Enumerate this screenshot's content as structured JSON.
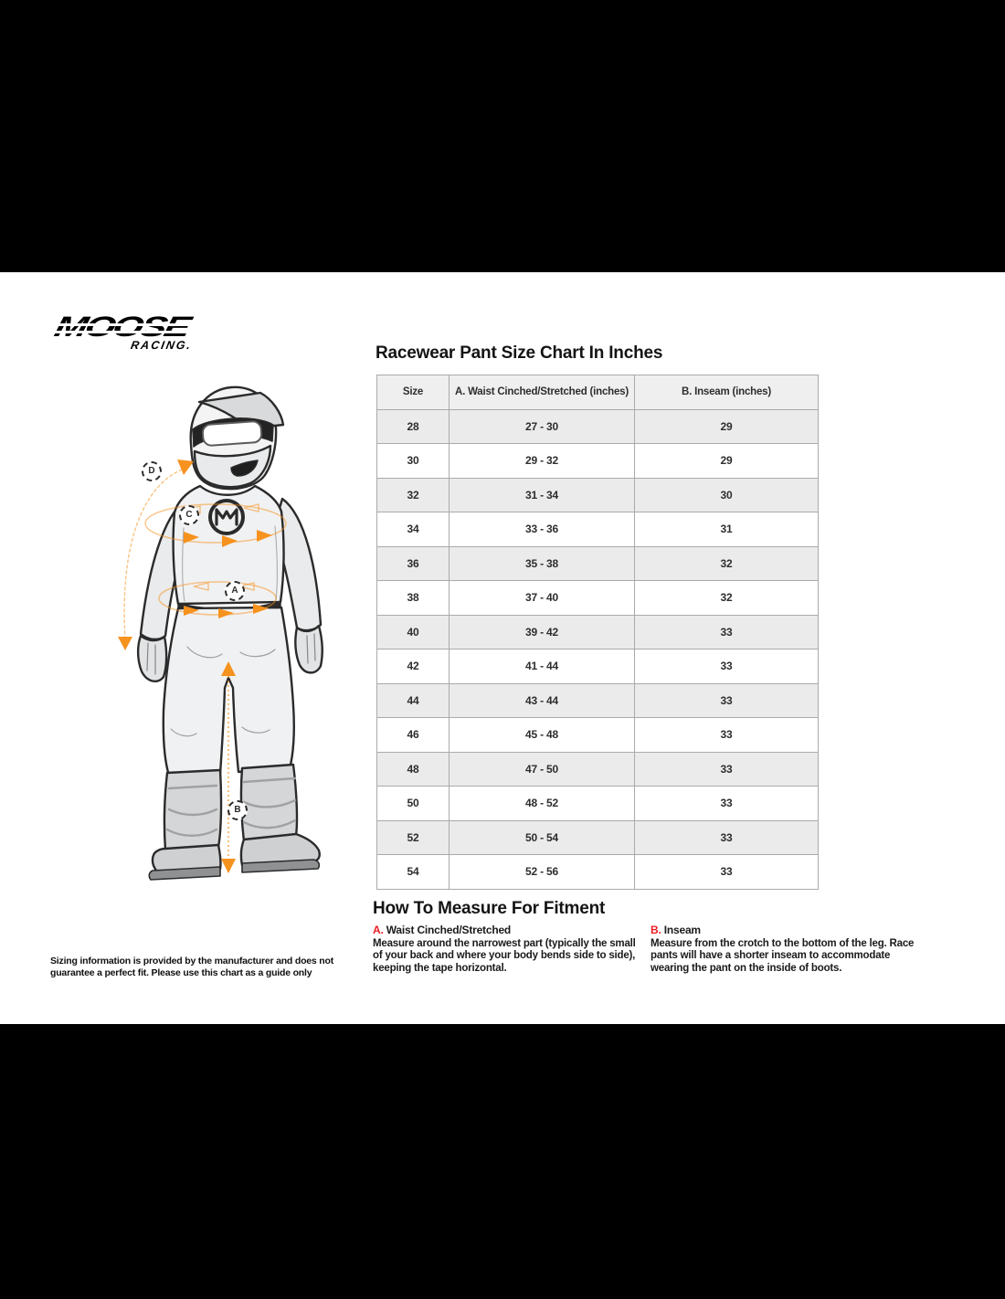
{
  "brand": {
    "logo_primary": "MOOSE",
    "logo_secondary": "RACING."
  },
  "page": {
    "title": "Racewear Pant Size Chart In Inches"
  },
  "size_table": {
    "headers": [
      "Size",
      "A. Waist Cinched/Stretched (inches)",
      "B. Inseam (inches)"
    ],
    "rows": [
      [
        "28",
        "27 - 30",
        "29"
      ],
      [
        "30",
        "29 - 32",
        "29"
      ],
      [
        "32",
        "31 - 34",
        "30"
      ],
      [
        "34",
        "33 - 36",
        "31"
      ],
      [
        "36",
        "35 - 38",
        "32"
      ],
      [
        "38",
        "37 - 40",
        "32"
      ],
      [
        "40",
        "39 - 42",
        "33"
      ],
      [
        "42",
        "41 - 44",
        "33"
      ],
      [
        "44",
        "43 - 44",
        "33"
      ],
      [
        "46",
        "45 - 48",
        "33"
      ],
      [
        "48",
        "47 - 50",
        "33"
      ],
      [
        "50",
        "48 - 52",
        "33"
      ],
      [
        "52",
        "50 - 54",
        "33"
      ],
      [
        "54",
        "52 - 56",
        "33"
      ]
    ]
  },
  "how_to_measure": {
    "heading": "How To Measure For Fitment",
    "sections": [
      {
        "label": "A.",
        "title": "Waist Cinched/Stretched",
        "body": "Measure around the narrowest part (typically the small of your back and where your body bends side to side), keeping the tape horizontal."
      },
      {
        "label": "B.",
        "title": "Inseam",
        "body": "Measure from the crotch to the bottom of the leg. Race pants will have a shorter inseam to accommodate wearing the pant on the inside of boots."
      }
    ]
  },
  "diagram": {
    "labels": {
      "waist": "A",
      "inseam": "B",
      "chest": "C",
      "sleeve": "D"
    }
  },
  "disclaimer": "Sizing information is provided by the manufacturer and does not guarantee a perfect fit. Please use this chart as a guide only",
  "colors": {
    "letterbox_black": "#000000",
    "accent_orange": "#F6921E",
    "accent_red": "#EC1C24",
    "row_shade": "#EBEBEB",
    "table_border": "#AAAAAA"
  }
}
